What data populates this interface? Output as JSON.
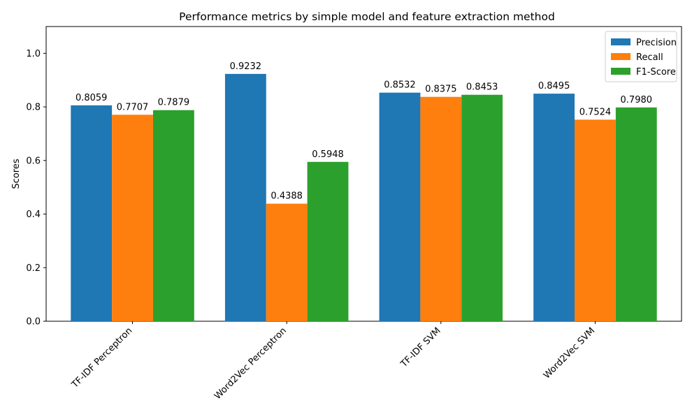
{
  "chart_data": {
    "type": "bar",
    "title": "Performance metrics by simple model and feature extraction method",
    "xlabel": "",
    "ylabel": "Scores",
    "ylim": [
      0,
      1.1
    ],
    "yticks": [
      0.0,
      0.2,
      0.4,
      0.6,
      0.8,
      1.0
    ],
    "ytick_labels": [
      "0.0",
      "0.2",
      "0.4",
      "0.6",
      "0.8",
      "1.0"
    ],
    "categories": [
      "TF-IDF Perceptron",
      "Word2Vec Perceptron",
      "TF-IDF SVM",
      "Word2Vec SVM"
    ],
    "series": [
      {
        "name": "Precision",
        "color": "#1f77b4",
        "values": [
          0.8059,
          0.9232,
          0.8532,
          0.8495
        ],
        "labels": [
          "0.8059",
          "0.9232",
          "0.8532",
          "0.8495"
        ]
      },
      {
        "name": "Recall",
        "color": "#ff7f0e",
        "values": [
          0.7707,
          0.4388,
          0.8375,
          0.7524
        ],
        "labels": [
          "0.7707",
          "0.4388",
          "0.8375",
          "0.7524"
        ]
      },
      {
        "name": "F1-Score",
        "color": "#2ca02c",
        "values": [
          0.7879,
          0.5948,
          0.8453,
          0.798
        ],
        "labels": [
          "0.7879",
          "0.5948",
          "0.8453",
          "0.7980"
        ]
      }
    ],
    "legend_position": "top-right",
    "grid": false
  }
}
